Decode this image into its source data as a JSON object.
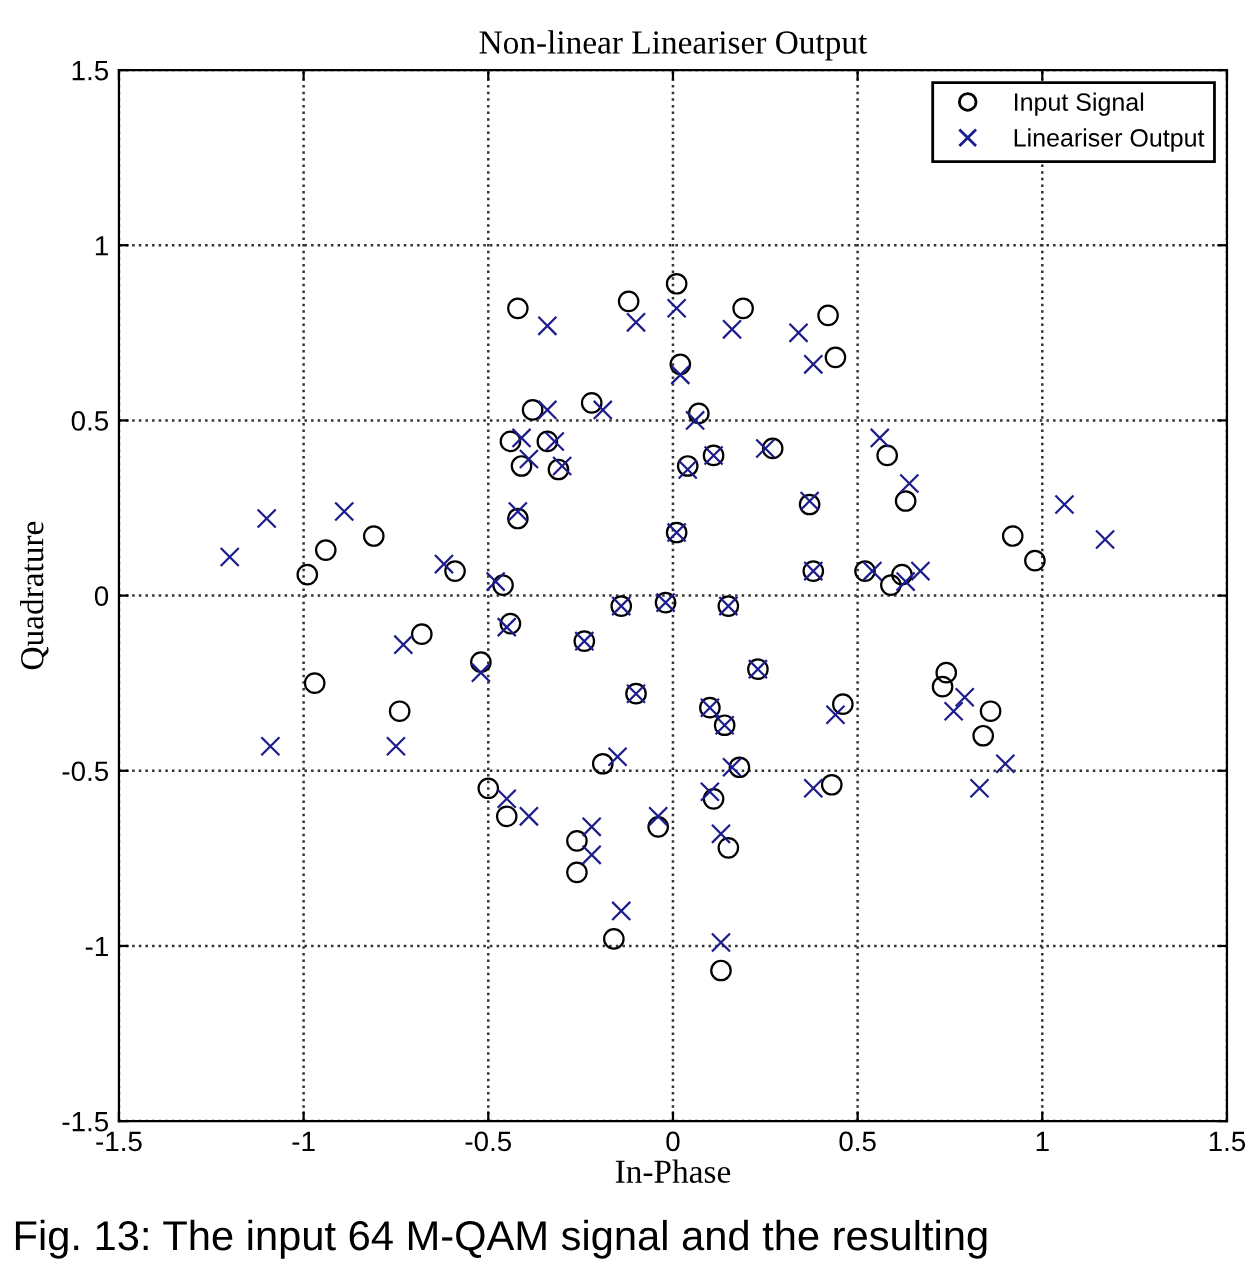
{
  "chart_data": {
    "type": "scatter",
    "title": "Non-linear Lineariser Output",
    "xlabel": "In-Phase",
    "ylabel": "Quadrature",
    "xlim": [
      -1.5,
      1.5
    ],
    "ylim": [
      -1.5,
      1.5
    ],
    "xticks": [
      -1.5,
      -1,
      -0.5,
      0,
      0.5,
      1,
      1.5
    ],
    "yticks": [
      -1.5,
      -1,
      -0.5,
      0,
      0.5,
      1,
      1.5
    ],
    "grid": true,
    "legend": "top right",
    "line_style": "dotted",
    "annotations": [
      "Fig. 13: The input 64 M-QAM signal and the resulting"
    ],
    "series": [
      {
        "name": "Input Signal",
        "color": "#000000",
        "marker": "circle",
        "x": [
          -0.42,
          -0.12,
          -0.38,
          -0.22,
          -0.44,
          -0.34,
          -0.41,
          -0.31,
          -0.42,
          -0.81,
          -0.94,
          -0.99,
          -0.59,
          -0.46,
          0.01,
          0.19,
          0.42,
          0.44,
          0.02,
          0.07,
          0.27,
          0.11,
          0.04,
          0.58,
          0.63,
          0.37,
          0.01,
          0.92,
          0.98,
          0.38,
          0.52,
          0.62,
          0.59,
          0.15,
          -0.02,
          -0.44,
          -0.68,
          -0.52,
          -0.97,
          -0.74,
          -0.24,
          -0.1,
          -0.14,
          -0.19,
          -0.5,
          -0.45,
          -0.26,
          -0.26,
          -0.16,
          -0.04,
          0.23,
          0.1,
          0.14,
          0.46,
          0.18,
          0.11,
          0.15,
          0.13,
          0.43,
          0.74,
          0.73,
          0.86,
          0.84
        ],
        "values": [
          0.82,
          0.84,
          0.53,
          0.55,
          0.44,
          0.44,
          0.37,
          0.36,
          0.22,
          0.17,
          0.13,
          0.06,
          0.07,
          0.03,
          0.89,
          0.82,
          0.8,
          0.68,
          0.66,
          0.52,
          0.42,
          0.4,
          0.37,
          0.4,
          0.27,
          0.26,
          0.18,
          0.17,
          0.1,
          0.07,
          0.07,
          0.06,
          0.03,
          -0.03,
          -0.02,
          -0.08,
          -0.11,
          -0.19,
          -0.25,
          -0.33,
          -0.13,
          -0.28,
          -0.03,
          -0.48,
          -0.55,
          -0.63,
          -0.7,
          -0.79,
          -0.98,
          -0.66,
          -0.21,
          -0.32,
          -0.37,
          -0.31,
          -0.49,
          -0.58,
          -0.72,
          -1.07,
          -0.54,
          -0.22,
          -0.26,
          -0.33,
          -0.4
        ]
      },
      {
        "name": "Lineariser Output",
        "color": "#1c1c8c",
        "marker": "cross",
        "x": [
          -0.34,
          -0.1,
          -0.34,
          -0.19,
          -0.41,
          -0.32,
          -0.39,
          -0.3,
          -0.42,
          -1.1,
          -0.89,
          -1.2,
          -0.62,
          -0.48,
          0.01,
          0.16,
          0.34,
          0.38,
          0.02,
          0.06,
          0.25,
          0.11,
          0.04,
          0.56,
          0.64,
          0.37,
          0.01,
          1.06,
          1.17,
          0.38,
          0.54,
          0.67,
          0.63,
          0.15,
          -0.02,
          -0.45,
          -0.73,
          -0.52,
          -1.09,
          -0.75,
          -0.24,
          -0.1,
          -0.14,
          -0.15,
          -0.45,
          -0.39,
          -0.22,
          -0.22,
          -0.14,
          -0.04,
          0.23,
          0.1,
          0.14,
          0.44,
          0.16,
          0.1,
          0.13,
          0.13,
          0.38,
          0.79,
          0.76,
          0.9,
          0.83
        ],
        "values": [
          0.77,
          0.78,
          0.53,
          0.53,
          0.45,
          0.44,
          0.39,
          0.37,
          0.24,
          0.22,
          0.24,
          0.11,
          0.09,
          0.04,
          0.82,
          0.76,
          0.75,
          0.66,
          0.63,
          0.5,
          0.42,
          0.4,
          0.36,
          0.45,
          0.32,
          0.27,
          0.18,
          0.26,
          0.16,
          0.07,
          0.07,
          0.07,
          0.04,
          -0.03,
          -0.02,
          -0.09,
          -0.14,
          -0.22,
          -0.43,
          -0.43,
          -0.13,
          -0.28,
          -0.03,
          -0.46,
          -0.58,
          -0.63,
          -0.66,
          -0.74,
          -0.9,
          -0.63,
          -0.21,
          -0.32,
          -0.37,
          -0.34,
          -0.49,
          -0.56,
          -0.68,
          -0.99,
          -0.55,
          -0.29,
          -0.33,
          -0.48,
          -0.55
        ]
      }
    ]
  }
}
